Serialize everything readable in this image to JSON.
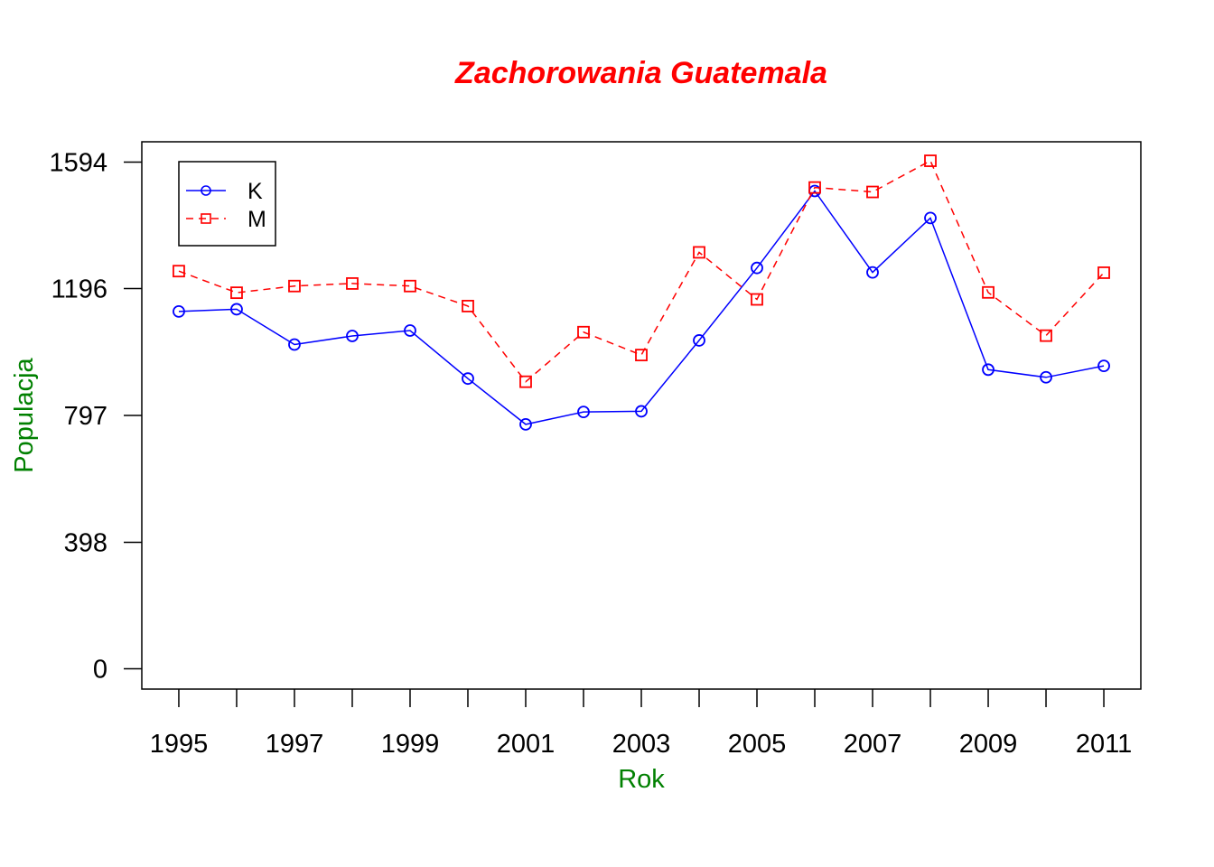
{
  "chart_data": {
    "type": "line",
    "title": "Zachorowania Guatemala",
    "xlabel": "Rok",
    "ylabel": "Populacja",
    "x": [
      1995,
      1996,
      1997,
      1998,
      1999,
      2000,
      2001,
      2002,
      2003,
      2004,
      2005,
      2006,
      2007,
      2008,
      2009,
      2010,
      2011
    ],
    "x_tick_labels": [
      "1995",
      "1997",
      "1999",
      "2001",
      "2003",
      "2005",
      "2007",
      "2009",
      "2011"
    ],
    "y_ticks": [
      0,
      398,
      797,
      1196,
      1594
    ],
    "y_tick_labels": [
      "0",
      "398",
      "797",
      "1196",
      "1594"
    ],
    "xlim": [
      1994.36,
      2011.64
    ],
    "ylim": [
      -63.8,
      1657.8
    ],
    "grid": false,
    "legend_position": "top-left",
    "series": [
      {
        "name": "K",
        "color": "#0000ff",
        "line_style": "solid",
        "marker": "circle",
        "values": [
          1124,
          1131,
          1020,
          1047,
          1064,
          913,
          769,
          808,
          810,
          1033,
          1261,
          1503,
          1247,
          1418,
          941,
          917,
          953
        ]
      },
      {
        "name": "M",
        "color": "#ff0000",
        "line_style": "dashed",
        "marker": "square",
        "values": [
          1251,
          1183,
          1204,
          1212,
          1204,
          1141,
          903,
          1059,
          987,
          1310,
          1162,
          1514,
          1500,
          1598,
          1184,
          1048,
          1246
        ]
      }
    ],
    "colors": {
      "title": "#ff0000",
      "axis_labels": "#008000",
      "axes": "#000000"
    }
  }
}
